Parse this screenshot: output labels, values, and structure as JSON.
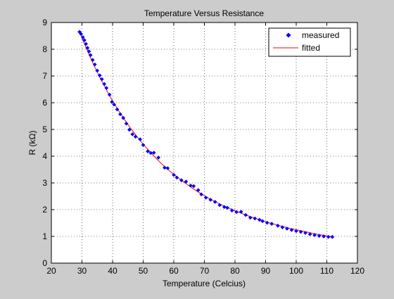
{
  "chart_data": {
    "type": "scatter",
    "title": "Temperature Versus Resistance",
    "xlabel": "Temperature (Celcius)",
    "ylabel": "R (kΩ)",
    "xlim": [
      20,
      120
    ],
    "ylim": [
      0,
      9
    ],
    "xticks": [
      "20",
      "30",
      "40",
      "50",
      "60",
      "70",
      "80",
      "90",
      "100",
      "110",
      "120"
    ],
    "yticks": [
      "0",
      "1",
      "2",
      "3",
      "4",
      "5",
      "6",
      "7",
      "8",
      "9"
    ],
    "grid": true,
    "legend_position": "top-right",
    "series": [
      {
        "name": "measured",
        "style": "markers",
        "color": "#0000ff",
        "points": [
          [
            29.2,
            8.65
          ],
          [
            29.7,
            8.57
          ],
          [
            30.3,
            8.45
          ],
          [
            30.8,
            8.34
          ],
          [
            31.3,
            8.2
          ],
          [
            31.8,
            8.05
          ],
          [
            32.3,
            7.92
          ],
          [
            32.8,
            7.78
          ],
          [
            33.5,
            7.6
          ],
          [
            34.2,
            7.43
          ],
          [
            35.0,
            7.2
          ],
          [
            35.8,
            7.02
          ],
          [
            36.5,
            6.88
          ],
          [
            37.3,
            6.7
          ],
          [
            38.0,
            6.55
          ],
          [
            39.0,
            6.3
          ],
          [
            39.8,
            6.03
          ],
          [
            40.5,
            5.93
          ],
          [
            41.5,
            5.75
          ],
          [
            42.5,
            5.57
          ],
          [
            43.5,
            5.43
          ],
          [
            44.5,
            5.22
          ],
          [
            45.5,
            4.99
          ],
          [
            46.5,
            4.82
          ],
          [
            47.5,
            4.73
          ],
          [
            49.0,
            4.63
          ],
          [
            50.0,
            4.42
          ],
          [
            51.5,
            4.18
          ],
          [
            52.5,
            4.12
          ],
          [
            53.5,
            4.13
          ],
          [
            55.0,
            3.95
          ],
          [
            57.0,
            3.57
          ],
          [
            58.0,
            3.55
          ],
          [
            60.0,
            3.3
          ],
          [
            61.0,
            3.2
          ],
          [
            62.5,
            3.1
          ],
          [
            64.0,
            3.05
          ],
          [
            65.5,
            2.9
          ],
          [
            66.5,
            2.88
          ],
          [
            68.0,
            2.73
          ],
          [
            69.0,
            2.57
          ],
          [
            70.5,
            2.45
          ],
          [
            72.0,
            2.37
          ],
          [
            73.5,
            2.29
          ],
          [
            75.0,
            2.17
          ],
          [
            76.5,
            2.1
          ],
          [
            77.5,
            2.07
          ],
          [
            79.0,
            1.97
          ],
          [
            80.5,
            1.91
          ],
          [
            82.0,
            1.92
          ],
          [
            83.5,
            1.8
          ],
          [
            85.0,
            1.7
          ],
          [
            86.5,
            1.67
          ],
          [
            88.0,
            1.62
          ],
          [
            89.0,
            1.57
          ],
          [
            90.5,
            1.51
          ],
          [
            92.0,
            1.47
          ],
          [
            94.0,
            1.4
          ],
          [
            95.5,
            1.34
          ],
          [
            97.0,
            1.29
          ],
          [
            98.5,
            1.24
          ],
          [
            100.0,
            1.2
          ],
          [
            101.5,
            1.17
          ],
          [
            103.0,
            1.13
          ],
          [
            104.5,
            1.08
          ],
          [
            106.0,
            1.05
          ],
          [
            107.5,
            1.02
          ],
          [
            109.0,
            1.0
          ],
          [
            110.5,
            0.98
          ],
          [
            111.8,
            0.98
          ]
        ]
      },
      {
        "name": "fitted",
        "style": "line",
        "color": "#ff0000",
        "points": [
          [
            29.2,
            8.7
          ],
          [
            30,
            8.42
          ],
          [
            32,
            7.88
          ],
          [
            34,
            7.38
          ],
          [
            36,
            6.91
          ],
          [
            38,
            6.48
          ],
          [
            40,
            6.07
          ],
          [
            42,
            5.7
          ],
          [
            44,
            5.35
          ],
          [
            46,
            5.03
          ],
          [
            48,
            4.73
          ],
          [
            50,
            4.45
          ],
          [
            52,
            4.19
          ],
          [
            54,
            3.95
          ],
          [
            56,
            3.72
          ],
          [
            58,
            3.51
          ],
          [
            60,
            3.32
          ],
          [
            62,
            3.14
          ],
          [
            64,
            2.97
          ],
          [
            66,
            2.81
          ],
          [
            68,
            2.66
          ],
          [
            70,
            2.52
          ],
          [
            72,
            2.39
          ],
          [
            74,
            2.27
          ],
          [
            76,
            2.16
          ],
          [
            78,
            2.06
          ],
          [
            80,
            1.96
          ],
          [
            82,
            1.87
          ],
          [
            84,
            1.78
          ],
          [
            86,
            1.7
          ],
          [
            88,
            1.62
          ],
          [
            90,
            1.55
          ],
          [
            92,
            1.48
          ],
          [
            94,
            1.42
          ],
          [
            96,
            1.36
          ],
          [
            98,
            1.3
          ],
          [
            100,
            1.25
          ],
          [
            102,
            1.2
          ],
          [
            104,
            1.15
          ],
          [
            106,
            1.1
          ],
          [
            108,
            1.06
          ],
          [
            110,
            1.02
          ],
          [
            111.8,
            0.99
          ]
        ]
      }
    ]
  }
}
